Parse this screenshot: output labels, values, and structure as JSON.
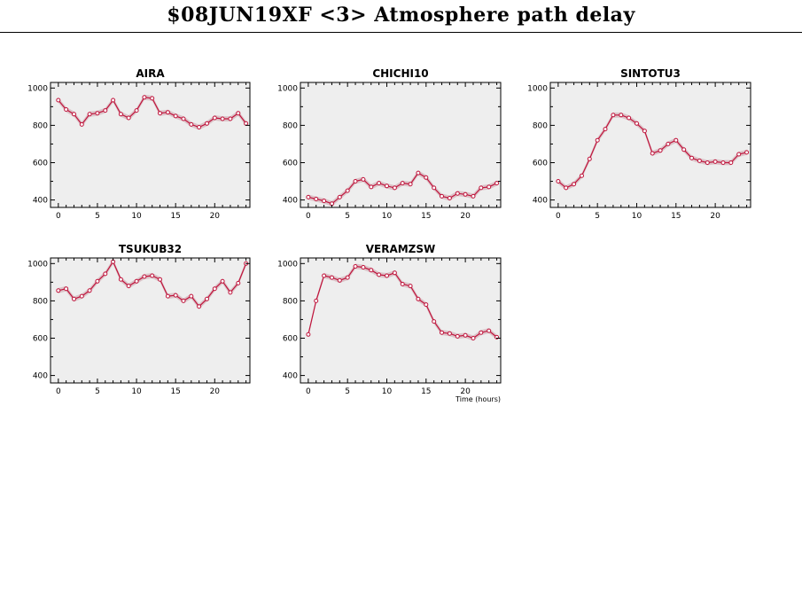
{
  "page": {
    "title": "$08JUN19XF <3>  Atmosphere path delay"
  },
  "colors": {
    "line": "#c0143c",
    "band": "#d4b4bb",
    "panel_bg": "#eeeeee"
  },
  "chart_data": [
    {
      "type": "line",
      "title": "AIRA",
      "xlim": [
        -1,
        24.5
      ],
      "ylim": [
        360,
        1030
      ],
      "xticks": [
        0,
        5,
        10,
        15,
        20
      ],
      "yticks": [
        400,
        600,
        800,
        1000
      ],
      "xlabel": "",
      "x": [
        0,
        1,
        2,
        3,
        4,
        5,
        6,
        7,
        8,
        9,
        10,
        11,
        12,
        13,
        14,
        15,
        16,
        17,
        18,
        19,
        20,
        21,
        22,
        23,
        24
      ],
      "values": [
        935,
        885,
        860,
        805,
        860,
        865,
        880,
        935,
        860,
        840,
        880,
        950,
        945,
        865,
        870,
        850,
        835,
        805,
        790,
        810,
        840,
        835,
        835,
        865,
        810
      ]
    },
    {
      "type": "line",
      "title": "CHICHI10",
      "xlim": [
        -1,
        24.5
      ],
      "ylim": [
        360,
        1030
      ],
      "xticks": [
        0,
        5,
        10,
        15,
        20
      ],
      "yticks": [
        400,
        600,
        800,
        1000
      ],
      "xlabel": "",
      "x": [
        0,
        1,
        2,
        3,
        4,
        5,
        6,
        7,
        8,
        9,
        10,
        11,
        12,
        13,
        14,
        15,
        16,
        17,
        18,
        19,
        20,
        21,
        22,
        23,
        24
      ],
      "values": [
        415,
        405,
        395,
        380,
        415,
        450,
        500,
        510,
        470,
        490,
        475,
        465,
        490,
        485,
        545,
        520,
        465,
        420,
        410,
        435,
        430,
        420,
        465,
        470,
        490
      ]
    },
    {
      "type": "line",
      "title": "SINTOTU3",
      "xlim": [
        -1,
        24.5
      ],
      "ylim": [
        360,
        1030
      ],
      "xticks": [
        0,
        5,
        10,
        15,
        20
      ],
      "yticks": [
        400,
        600,
        800,
        1000
      ],
      "xlabel": "",
      "x": [
        0,
        1,
        2,
        3,
        4,
        5,
        6,
        7,
        8,
        9,
        10,
        11,
        12,
        13,
        14,
        15,
        16,
        17,
        18,
        19,
        20,
        21,
        22,
        23,
        24
      ],
      "values": [
        500,
        465,
        485,
        530,
        620,
        720,
        780,
        855,
        855,
        840,
        810,
        770,
        650,
        665,
        700,
        720,
        670,
        625,
        610,
        600,
        605,
        600,
        600,
        645,
        655
      ]
    },
    {
      "type": "line",
      "title": "TSUKUB32",
      "xlim": [
        -1,
        24.5
      ],
      "ylim": [
        360,
        1030
      ],
      "xticks": [
        0,
        5,
        10,
        15,
        20
      ],
      "yticks": [
        400,
        600,
        800,
        1000
      ],
      "xlabel": "",
      "x": [
        0,
        1,
        2,
        3,
        4,
        5,
        6,
        7,
        8,
        9,
        10,
        11,
        12,
        13,
        14,
        15,
        16,
        17,
        18,
        19,
        20,
        21,
        22,
        23,
        24
      ],
      "values": [
        855,
        865,
        810,
        825,
        855,
        905,
        945,
        1010,
        915,
        880,
        905,
        930,
        935,
        915,
        825,
        830,
        800,
        825,
        770,
        810,
        865,
        905,
        845,
        895,
        1000
      ]
    },
    {
      "type": "line",
      "title": "VERAMZSW",
      "xlim": [
        -1,
        24.5
      ],
      "ylim": [
        360,
        1030
      ],
      "xticks": [
        0,
        5,
        10,
        15,
        20
      ],
      "yticks": [
        400,
        600,
        800,
        1000
      ],
      "xlabel": "Time (hours)",
      "x": [
        0,
        1,
        2,
        3,
        4,
        5,
        6,
        7,
        8,
        9,
        10,
        11,
        12,
        13,
        14,
        15,
        16,
        17,
        18,
        19,
        20,
        21,
        22,
        23,
        24
      ],
      "values": [
        620,
        800,
        935,
        925,
        910,
        925,
        985,
        980,
        965,
        940,
        935,
        950,
        890,
        880,
        810,
        780,
        690,
        630,
        625,
        610,
        615,
        600,
        630,
        640,
        605
      ]
    }
  ]
}
